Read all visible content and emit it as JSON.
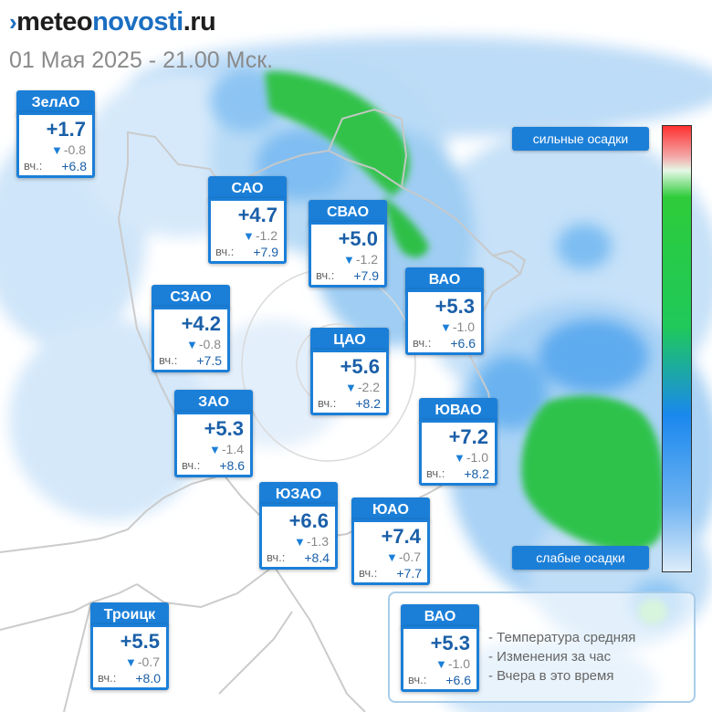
{
  "header": {
    "logo_mark": "›",
    "logo_part1": "meteo",
    "logo_part2": "novosti",
    "logo_part3": ".ru",
    "datetime": "01 Мая 2025 - 21.00 Мск."
  },
  "districts": [
    {
      "name": "ЗелАО",
      "temp": "+1.7",
      "change": "-0.8",
      "yest_label": "вч.:",
      "yest": "+6.8"
    },
    {
      "name": "САО",
      "temp": "+4.7",
      "change": "-1.2",
      "yest_label": "вч.:",
      "yest": "+7.9"
    },
    {
      "name": "СВАО",
      "temp": "+5.0",
      "change": "-1.2",
      "yest_label": "вч.:",
      "yest": "+7.9"
    },
    {
      "name": "ВАО",
      "temp": "+5.3",
      "change": "-1.0",
      "yest_label": "вч.:",
      "yest": "+6.6"
    },
    {
      "name": "СЗАО",
      "temp": "+4.2",
      "change": "-0.8",
      "yest_label": "вч.:",
      "yest": "+7.5"
    },
    {
      "name": "ЦАО",
      "temp": "+5.6",
      "change": "-2.2",
      "yest_label": "вч.:",
      "yest": "+8.2"
    },
    {
      "name": "ЗАО",
      "temp": "+5.3",
      "change": "-1.4",
      "yest_label": "вч.:",
      "yest": "+8.6"
    },
    {
      "name": "ЮВАО",
      "temp": "+7.2",
      "change": "-1.0",
      "yest_label": "вч.:",
      "yest": "+8.2"
    },
    {
      "name": "ЮЗАО",
      "temp": "+6.6",
      "change": "-1.3",
      "yest_label": "вч.:",
      "yest": "+8.4"
    },
    {
      "name": "ЮАО",
      "temp": "+7.4",
      "change": "-0.7",
      "yest_label": "вч.:",
      "yest": "+7.7"
    },
    {
      "name": "Троицк",
      "temp": "+5.5",
      "change": "-0.7",
      "yest_label": "вч.:",
      "yest": "+8.0"
    }
  ],
  "precip_legend": {
    "strong": "сильные осадки",
    "weak": "слабые осадки"
  },
  "explanation": {
    "example": {
      "name": "ВАО",
      "temp": "+5.3",
      "change": "-1.0",
      "yest_label": "вч.:",
      "yest": "+6.6"
    },
    "rows": [
      "- Температура средняя",
      "- Изменения за час",
      "- Вчера в это время"
    ]
  },
  "colors": {
    "accent": "#1b7fd8",
    "temperature_text": "#1a5fa8",
    "light_precip": "#4aa3ee",
    "heavy_precip": "#23c14a"
  },
  "icons": {
    "change_down": "down-triangle-icon"
  }
}
